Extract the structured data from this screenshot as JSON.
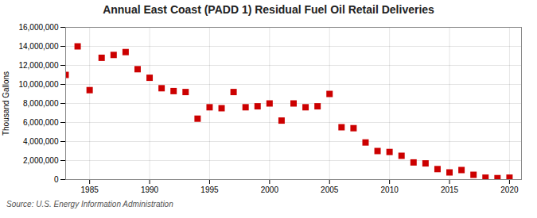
{
  "chart_data": {
    "type": "scatter",
    "title": "Annual East Coast (PADD 1) Residual Fuel Oil Retail Deliveries",
    "ylabel": "Thousand Gallons",
    "annotations": [
      "Source: U.S. Energy Information Administration"
    ],
    "x": [
      1983,
      1984,
      1985,
      1986,
      1987,
      1988,
      1989,
      1990,
      1991,
      1992,
      1993,
      1994,
      1995,
      1996,
      1997,
      1998,
      1999,
      2000,
      2001,
      2002,
      2003,
      2004,
      2005,
      2006,
      2007,
      2008,
      2009,
      2010,
      2011,
      2012,
      2013,
      2014,
      2015,
      2016,
      2017,
      2018,
      2019,
      2020
    ],
    "values": [
      11000000,
      14000000,
      9400000,
      12800000,
      13100000,
      13400000,
      11600000,
      10700000,
      9600000,
      9300000,
      9200000,
      6400000,
      7600000,
      7500000,
      9200000,
      7600000,
      7700000,
      8000000,
      6200000,
      8000000,
      7600000,
      7700000,
      9000000,
      5500000,
      5400000,
      3900000,
      3000000,
      2900000,
      2500000,
      1800000,
      1700000,
      1100000,
      750000,
      1000000,
      500000,
      200000,
      150000,
      200000
    ],
    "color": "#cc0000",
    "marker": "square",
    "xlim": [
      1983,
      2021
    ],
    "xticks": [
      1985,
      1990,
      1995,
      2000,
      2005,
      2010,
      2015,
      2020
    ],
    "ylim": [
      0,
      16000000
    ],
    "yticks": [
      0,
      {
        "value": 2000000,
        "label": "2,000,000"
      },
      {
        "value": 4000000,
        "label": "4,000,000"
      },
      {
        "value": 6000000,
        "label": "6,000,000"
      },
      {
        "value": 8000000,
        "label": "8,000,000"
      },
      {
        "value": 10000000,
        "label": "10,000,000"
      },
      {
        "value": 12000000,
        "label": "12,000,000"
      },
      {
        "value": 14000000,
        "label": "14,000,000"
      },
      {
        "value": 16000000,
        "label": "16,000,000"
      }
    ],
    "grid": true
  }
}
